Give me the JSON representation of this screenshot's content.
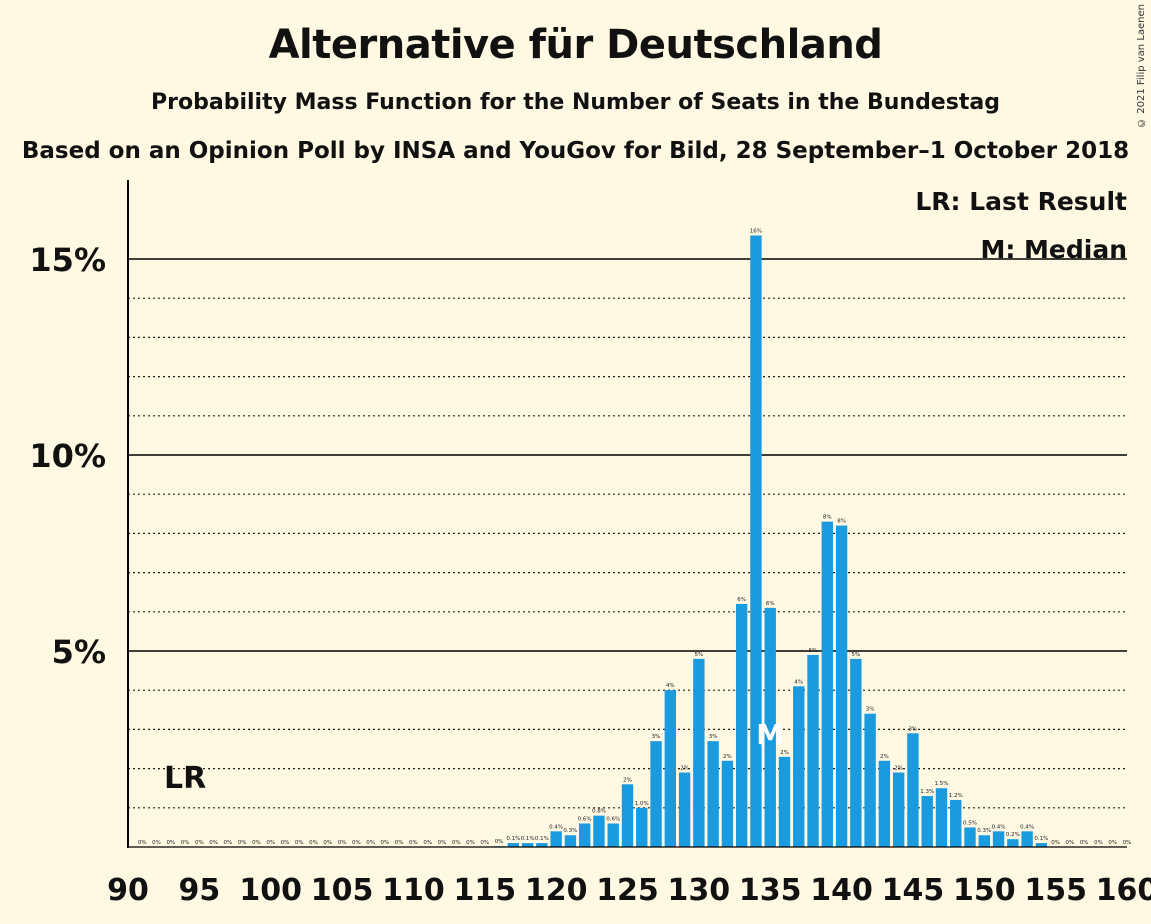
{
  "title": "Alternative für Deutschland",
  "subtitle": "Probability Mass Function for the Number of Seats in the Bundestag",
  "subtitle2": "Based on an Opinion Poll by INSA and YouGov for Bild, 28 September–1 October 2018",
  "copyright": "© 2021 Filip van Laenen",
  "chart_data": {
    "type": "bar",
    "title": "Alternative für Deutschland",
    "xlabel": "",
    "ylabel": "",
    "xlim": [
      90,
      160
    ],
    "ylim": [
      0,
      16.8
    ],
    "x_ticks": [
      "90",
      "95",
      "100",
      "105",
      "110",
      "115",
      "120",
      "125",
      "130",
      "135",
      "140",
      "145",
      "150",
      "155",
      "160"
    ],
    "y_ticks": [
      {
        "value": 5,
        "label": "5%"
      },
      {
        "value": 10,
        "label": "10%"
      },
      {
        "value": 15,
        "label": "15%"
      }
    ],
    "grid": true,
    "bar_color": "#1A9BE0",
    "legend": {
      "position": "top-right",
      "items": [
        "LR: Last Result",
        "M: Median"
      ]
    },
    "annotations": {
      "last_result": {
        "seat": 94,
        "label": "LR"
      },
      "median": {
        "seat": 135,
        "label": "M"
      }
    },
    "seats": [
      91,
      92,
      93,
      94,
      95,
      96,
      97,
      98,
      99,
      100,
      101,
      102,
      103,
      104,
      105,
      106,
      107,
      108,
      109,
      110,
      111,
      112,
      113,
      114,
      115,
      116,
      117,
      118,
      119,
      120,
      121,
      122,
      123,
      124,
      125,
      126,
      127,
      128,
      129,
      130,
      131,
      132,
      133,
      134,
      135,
      136,
      137,
      138,
      139,
      140,
      141,
      142,
      143,
      144,
      145,
      146,
      147,
      148,
      149,
      150,
      151,
      152,
      153,
      154,
      155,
      156,
      157,
      158,
      159,
      160
    ],
    "values": [
      0,
      0,
      0,
      0,
      0,
      0,
      0,
      0,
      0,
      0,
      0,
      0,
      0,
      0,
      0,
      0,
      0,
      0,
      0,
      0,
      0,
      0,
      0,
      0,
      0,
      0.02,
      0.1,
      0.1,
      0.1,
      0.4,
      0.3,
      0.6,
      0.8,
      0.6,
      1.6,
      1.0,
      2.7,
      4.0,
      1.9,
      4.8,
      2.7,
      2.2,
      6.2,
      15.6,
      6.1,
      2.3,
      4.1,
      4.9,
      8.3,
      8.2,
      4.8,
      3.4,
      2.2,
      1.9,
      2.9,
      1.3,
      1.5,
      1.2,
      0.5,
      0.3,
      0.4,
      0.2,
      0.4,
      0.1,
      0,
      0,
      0,
      0,
      0,
      0
    ],
    "labels": [
      "0%",
      "0%",
      "0%",
      "0%",
      "0%",
      "0%",
      "0%",
      "0%",
      "0%",
      "0%",
      "0%",
      "0%",
      "0%",
      "0%",
      "0%",
      "0%",
      "0%",
      "0%",
      "0%",
      "0%",
      "0%",
      "0%",
      "0%",
      "0%",
      "0%",
      "0%",
      "0.1%",
      "0.1%",
      "0.1%",
      "0.4%",
      "0.3%",
      "0.6%",
      "0.8%",
      "0.6%",
      "2%",
      "1.0%",
      "3%",
      "4%",
      "2%",
      "5%",
      "3%",
      "2%",
      "6%",
      "16%",
      "6%",
      "2%",
      "4%",
      "5%",
      "8%",
      "8%",
      "5%",
      "3%",
      "2%",
      "2%",
      "3%",
      "1.3%",
      "1.5%",
      "1.2%",
      "0.5%",
      "0.3%",
      "0.4%",
      "0.2%",
      "0.4%",
      "0.1%",
      "0%",
      "0%",
      "0%",
      "0%",
      "0%",
      "0%"
    ]
  }
}
